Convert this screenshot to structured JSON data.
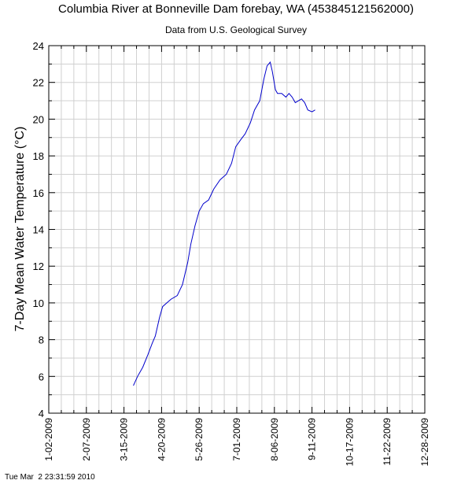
{
  "chart_data": {
    "type": "line",
    "title": "Columbia River at Bonneville Dam forebay, WA (453845121562000)",
    "subtitle": "Data from U.S. Geological Survey",
    "y_label": "7-Day Mean Water Temperature (°C)",
    "footer": "Tue Mar  2 23:31:59 2010",
    "x": [
      "2009-03-24",
      "2009-03-28",
      "2009-04-02",
      "2009-04-07",
      "2009-04-11",
      "2009-04-14",
      "2009-04-18",
      "2009-04-21",
      "2009-04-25",
      "2009-04-29",
      "2009-05-05",
      "2009-05-10",
      "2009-05-15",
      "2009-05-18",
      "2009-05-22",
      "2009-05-26",
      "2009-05-30",
      "2009-06-04",
      "2009-06-09",
      "2009-06-15",
      "2009-06-21",
      "2009-06-26",
      "2009-06-30",
      "2009-07-05",
      "2009-07-09",
      "2009-07-14",
      "2009-07-18",
      "2009-07-23",
      "2009-07-27",
      "2009-07-30",
      "2009-08-02",
      "2009-08-04",
      "2009-08-07",
      "2009-08-09",
      "2009-08-13",
      "2009-08-17",
      "2009-08-20",
      "2009-08-23",
      "2009-08-26",
      "2009-08-29",
      "2009-09-01",
      "2009-09-04",
      "2009-09-07",
      "2009-09-11",
      "2009-09-14"
    ],
    "series": [
      {
        "color": "#0000cc",
        "values": [
          5.5,
          6.0,
          6.5,
          7.2,
          7.8,
          8.2,
          9.2,
          9.8,
          10.0,
          10.2,
          10.4,
          11.0,
          12.2,
          13.2,
          14.2,
          15.0,
          15.4,
          15.6,
          16.2,
          16.7,
          17.0,
          17.6,
          18.5,
          18.9,
          19.2,
          19.8,
          20.5,
          21.0,
          22.2,
          22.9,
          23.1,
          22.6,
          21.6,
          21.4,
          21.4,
          21.2,
          21.4,
          21.2,
          20.9,
          21.0,
          21.1,
          20.9,
          20.5,
          20.4,
          20.5
        ]
      }
    ],
    "xlim": [
      "2009-01-02",
      "2009-12-28"
    ],
    "xticks": [
      {
        "value": "2009-01-02",
        "label": "1-02-2009"
      },
      {
        "value": "2009-02-07",
        "label": "2-07-2009"
      },
      {
        "value": "2009-03-15",
        "label": "3-15-2009"
      },
      {
        "value": "2009-04-20",
        "label": "4-20-2009"
      },
      {
        "value": "2009-05-26",
        "label": "5-26-2009"
      },
      {
        "value": "2009-07-01",
        "label": "7-01-2009"
      },
      {
        "value": "2009-08-06",
        "label": "8-06-2009"
      },
      {
        "value": "2009-09-11",
        "label": "9-11-2009"
      },
      {
        "value": "2009-10-17",
        "label": "10-17-2009"
      },
      {
        "value": "2009-11-22",
        "label": "11-22-2009"
      },
      {
        "value": "2009-12-28",
        "label": "12-28-2009"
      }
    ],
    "ylim": [
      4,
      24
    ],
    "yticks": [
      4,
      6,
      8,
      10,
      12,
      14,
      16,
      18,
      20,
      22,
      24
    ],
    "grid": true,
    "minor_grid": true
  }
}
